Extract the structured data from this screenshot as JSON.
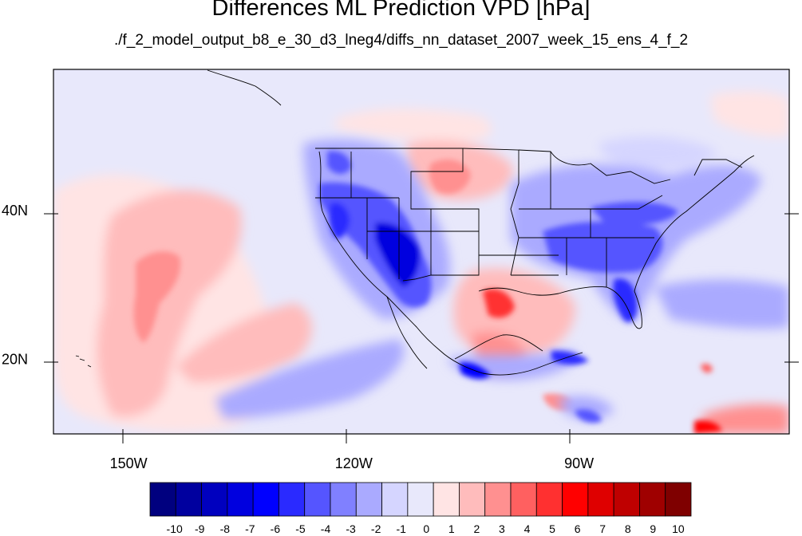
{
  "title": "Differences ML Prediction VPD [hPa]",
  "subtitle": "./f_2_model_output_b8_e_30_d3_lneg4/diffs_nn_dataset_2007_week_15_ens_4_f_2",
  "map": {
    "lon_range": [
      -160,
      -62
    ],
    "lat_range": [
      10,
      59
    ],
    "lon_ticks": [
      {
        "value": -150,
        "label": "150W"
      },
      {
        "value": -120,
        "label": "120W"
      },
      {
        "value": -90,
        "label": "90W"
      }
    ],
    "lat_ticks": [
      {
        "value": 40,
        "label": "40N"
      },
      {
        "value": 20,
        "label": "20N"
      }
    ]
  },
  "colorbar": {
    "labels": [
      "-10",
      "-9",
      "-8",
      "-7",
      "-6",
      "-5",
      "-4",
      "-3",
      "-2",
      "-1",
      "0",
      "1",
      "2",
      "3",
      "4",
      "5",
      "6",
      "7",
      "8",
      "9",
      "10"
    ],
    "colors": [
      "#00007f",
      "#00009f",
      "#0000bf",
      "#0000df",
      "#0000ff",
      "#2a2aff",
      "#5555ff",
      "#8080ff",
      "#aaaaff",
      "#d5d5ff",
      "#e8e8fb",
      "#ffe4e4",
      "#ffbcbc",
      "#ff9090",
      "#ff6060",
      "#ff3030",
      "#ff0000",
      "#df0000",
      "#bf0000",
      "#9f0000",
      "#7f0000"
    ]
  }
}
